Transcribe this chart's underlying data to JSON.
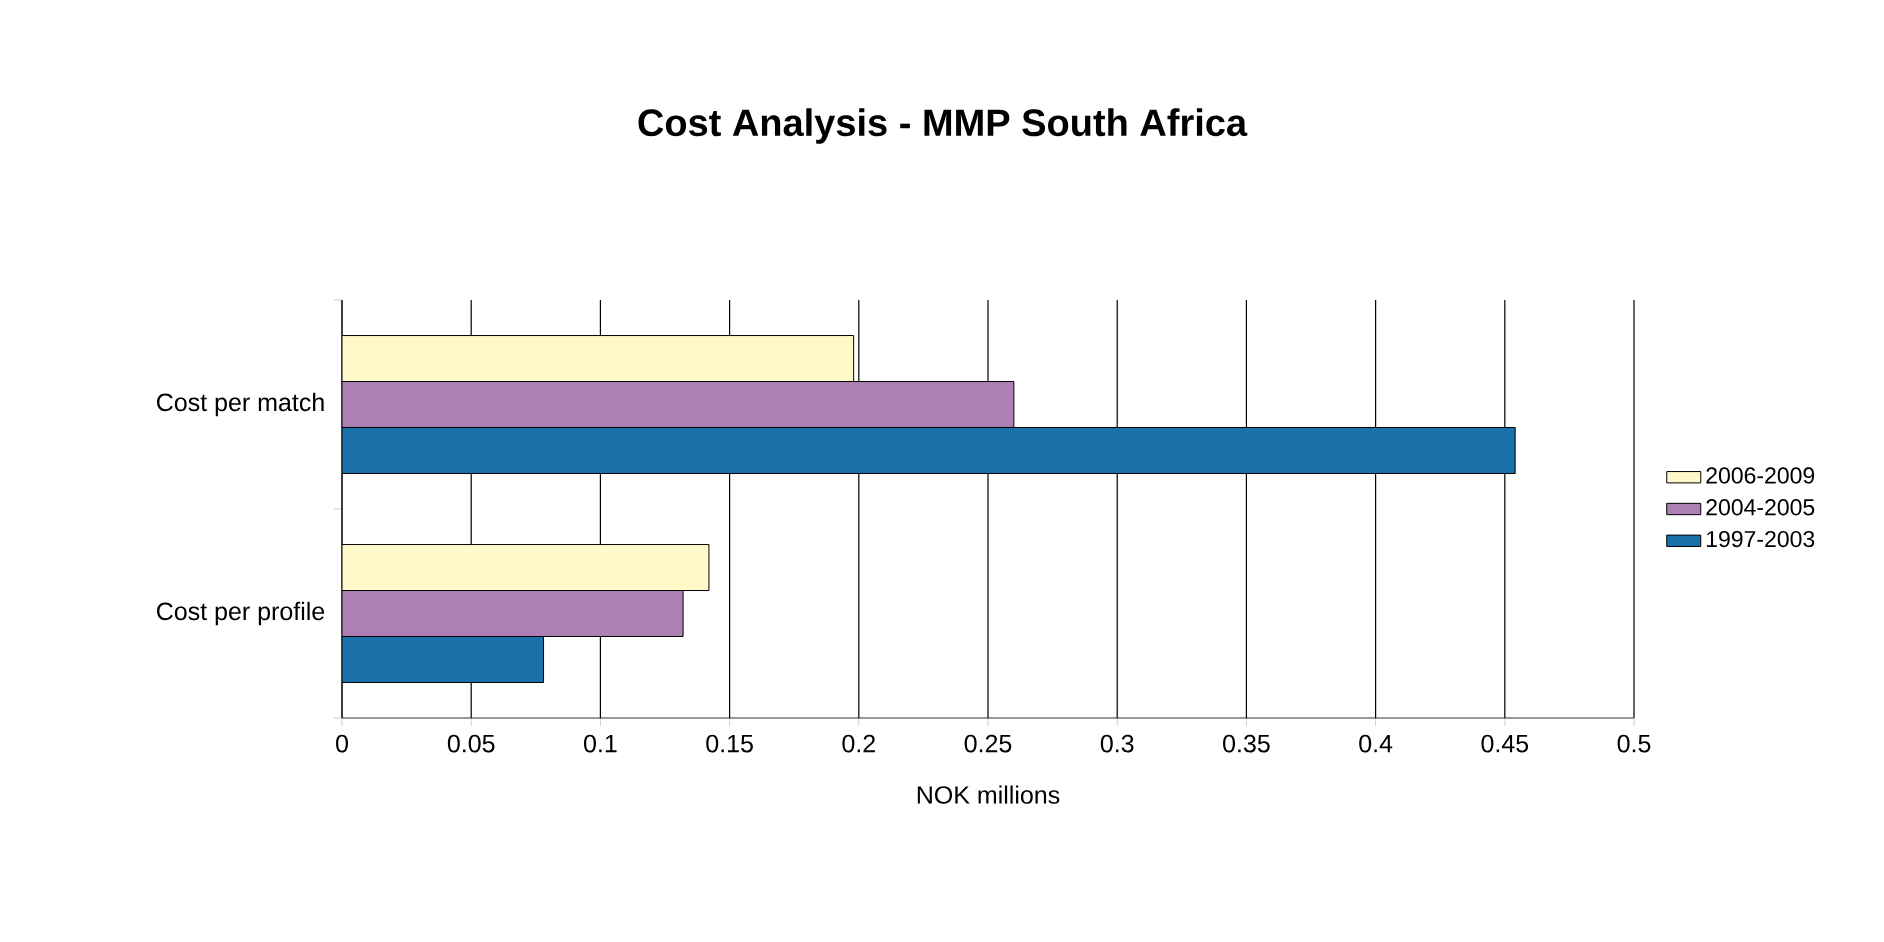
{
  "chart_data": {
    "type": "bar",
    "orientation": "horizontal",
    "title": "Cost Analysis - MMP South Africa",
    "xlabel": "NOK millions",
    "categories": [
      "Cost per match",
      "Cost per profile"
    ],
    "series": [
      {
        "name": "2006-2009",
        "color": "#fff8c8",
        "values": [
          0.198,
          0.142
        ]
      },
      {
        "name": "2004-2005",
        "color": "#ad80b4",
        "values": [
          0.26,
          0.132
        ]
      },
      {
        "name": "1997-2003",
        "color": "#1b72aa",
        "values": [
          0.454,
          0.078
        ]
      }
    ],
    "xlim": [
      0,
      0.5
    ],
    "xticks": [
      0,
      0.05,
      0.1,
      0.15,
      0.2,
      0.25,
      0.3,
      0.35,
      0.4,
      0.45,
      0.5
    ],
    "grid": "x",
    "legend": "right"
  }
}
